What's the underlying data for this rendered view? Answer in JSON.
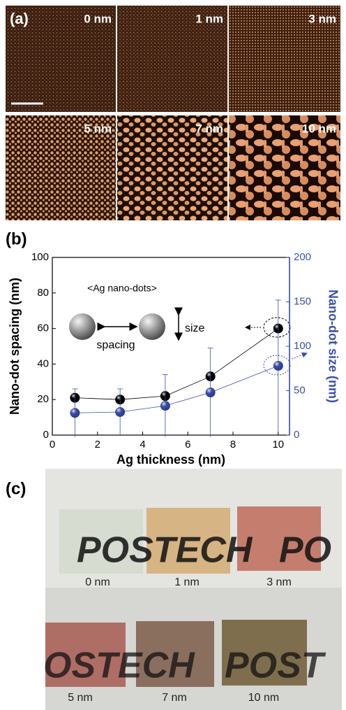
{
  "panel_a": {
    "label": "(a)",
    "images": [
      "0 nm",
      "1 nm",
      "3 nm",
      "5 nm",
      "7 nm",
      "10 nm"
    ]
  },
  "chart_data": {
    "type": "line",
    "panel_label": "(b)",
    "x_label": "Ag thickness (nm)",
    "y_label": "Nano-dot spacing (nm)",
    "y2_label": "Nano-dot size (nm)",
    "annotations": [
      "<Ag nano-dots>",
      "size",
      "spacing"
    ],
    "x": [
      1,
      3,
      5,
      7,
      10
    ],
    "series": [
      {
        "color": "#000000",
        "values": [
          21,
          20,
          22,
          33,
          60
        ]
      },
      {
        "color": "#3b4fa8",
        "axis": "y2",
        "values": [
          25,
          26,
          33,
          48,
          78
        ],
        "errors": [
          27,
          26,
          35,
          50,
          74
        ]
      }
    ],
    "xlim": [
      0,
      10.5
    ],
    "xticks": [
      0,
      2,
      4,
      6,
      8,
      10
    ],
    "ylim": [
      0,
      100
    ],
    "yticks": [
      0,
      20,
      40,
      60,
      80,
      100
    ],
    "y2lim": [
      0,
      200
    ],
    "y2ticks": [
      0,
      50,
      100,
      150,
      200
    ],
    "y2_color": "#3b4fa8"
  },
  "panel_c": {
    "label": "(c)",
    "top_text": [
      "POSTECH",
      "PO"
    ],
    "bottom_text": [
      "OSTECH",
      "POST"
    ],
    "samples": [
      "0 nm",
      "1 nm",
      "3 nm",
      "5 nm",
      "7 nm",
      "10 nm"
    ]
  }
}
